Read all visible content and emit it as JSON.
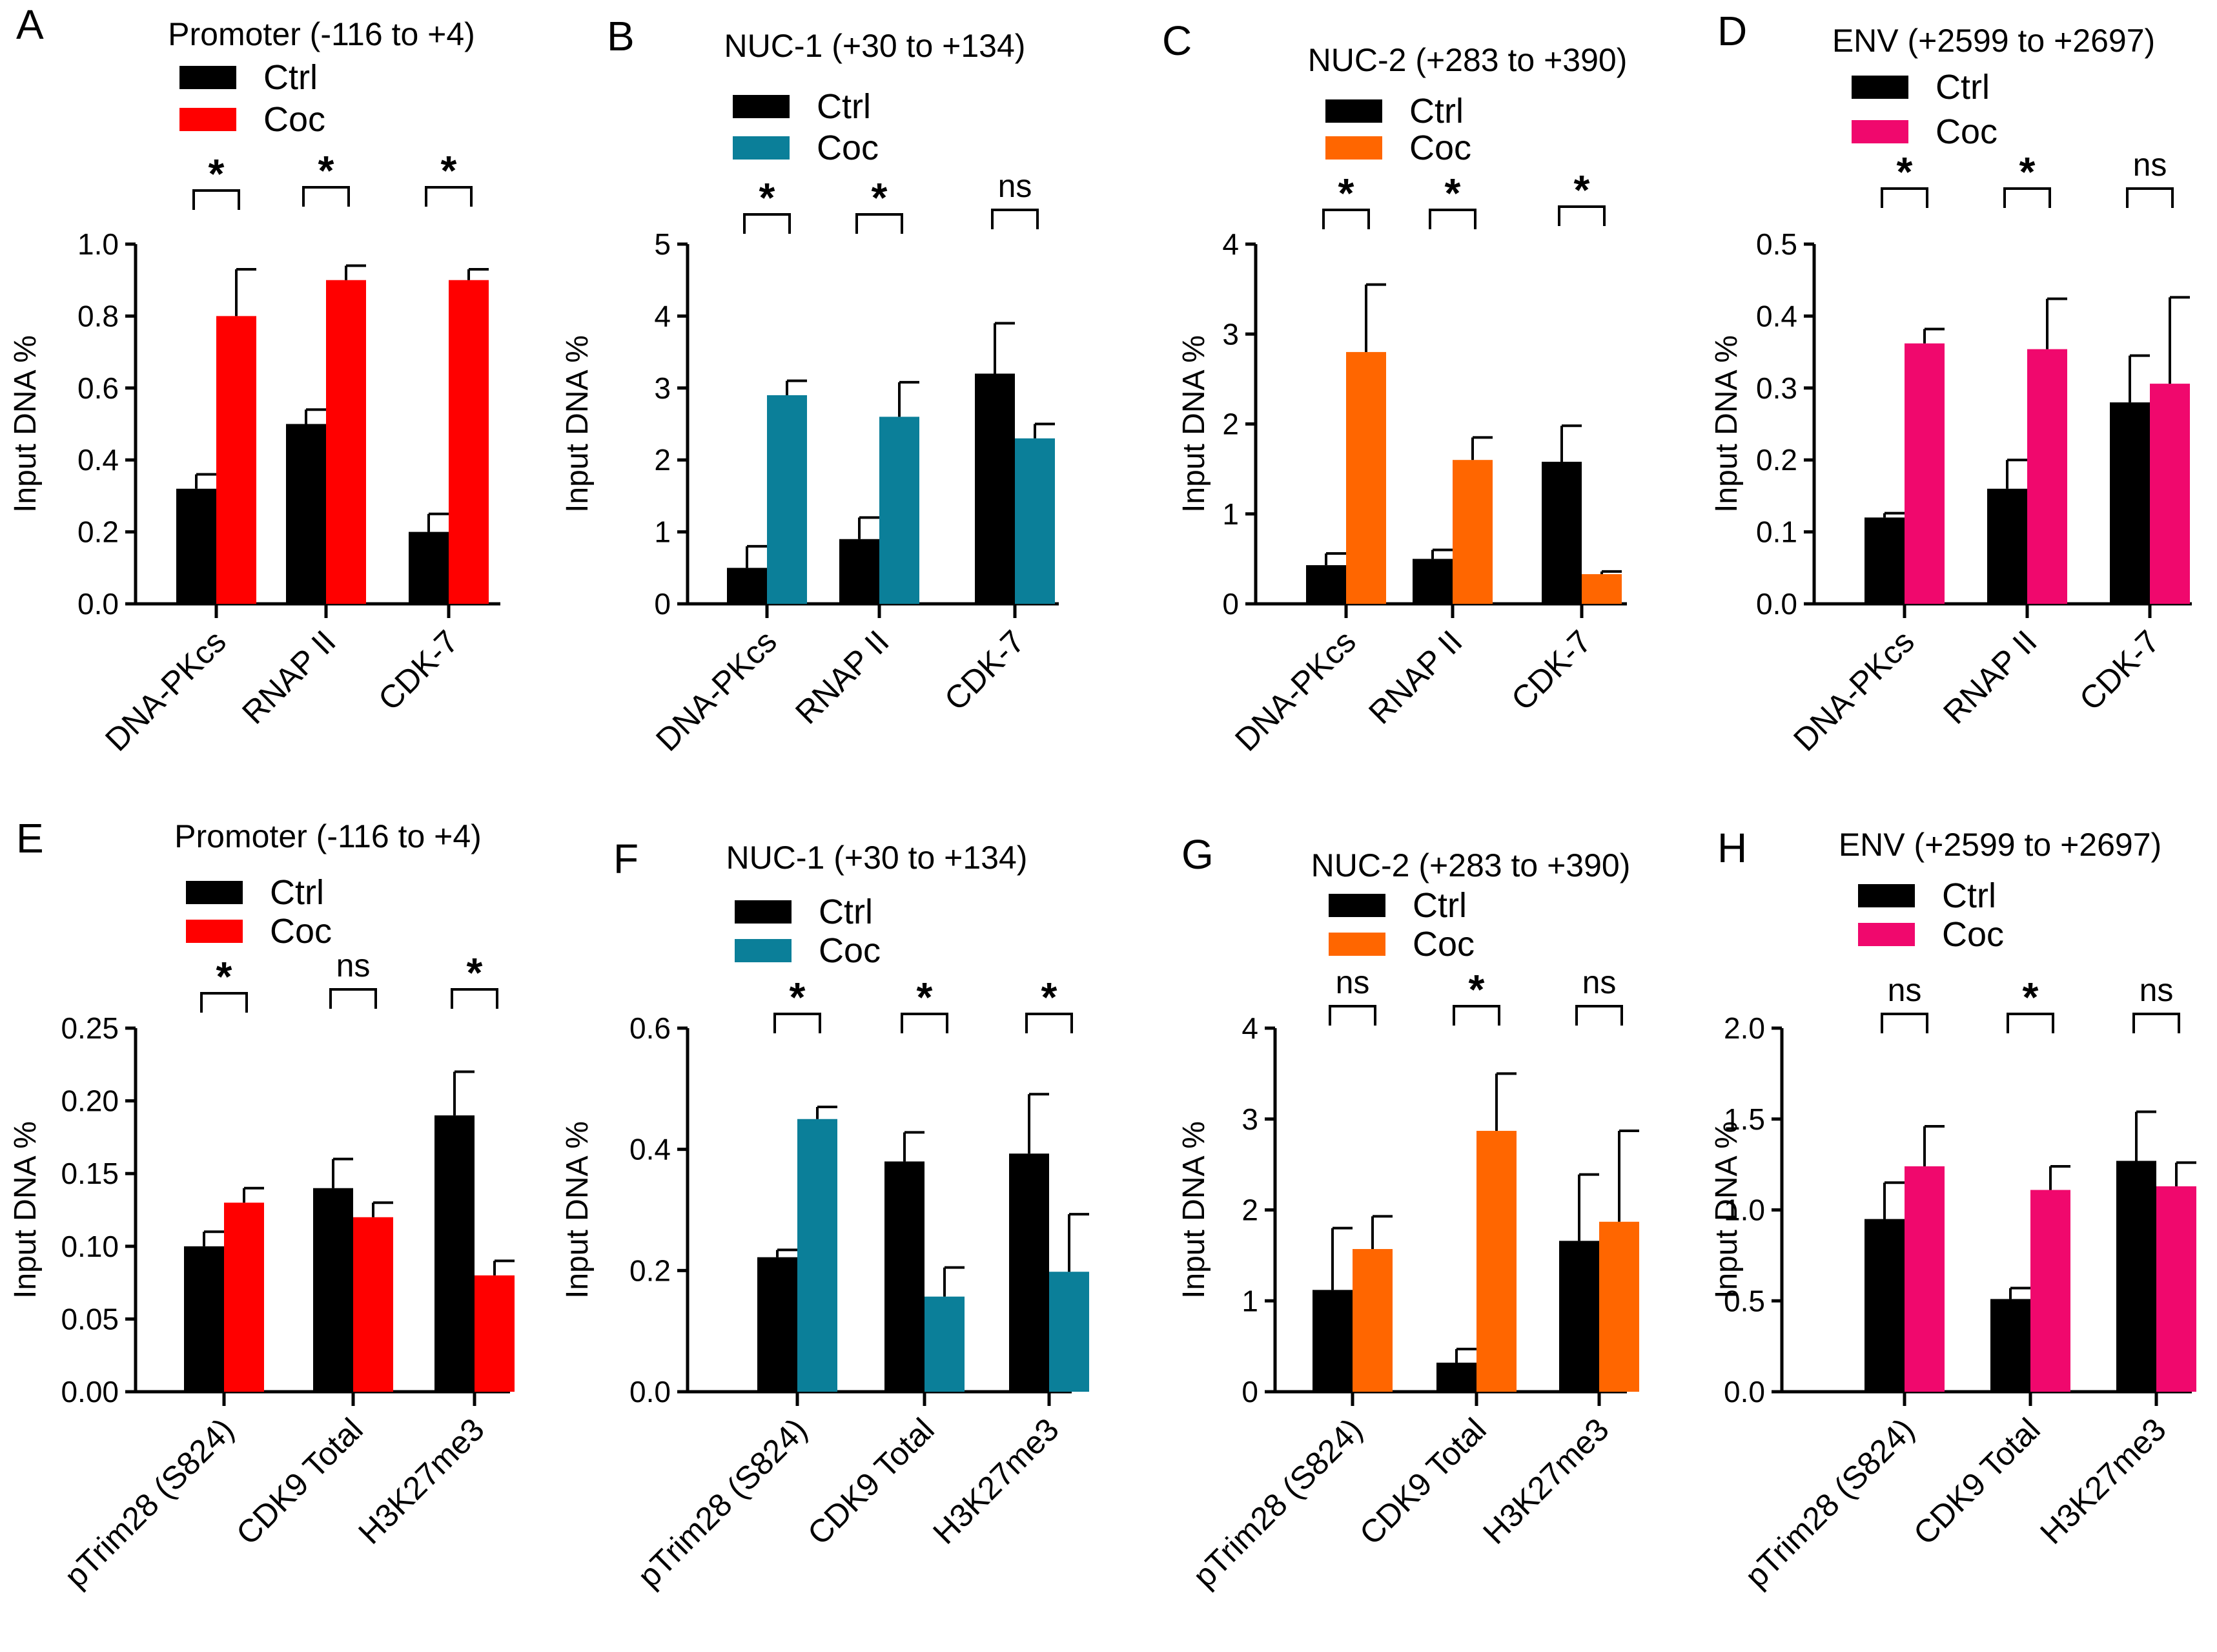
{
  "chart_data": [
    {
      "panel": "A",
      "type": "bar",
      "title": "Promoter (-116 to +4)",
      "ylabel": "Input DNA %",
      "ylim": [
        0,
        1.0
      ],
      "yticks": [
        "0.0",
        "0.2",
        "0.4",
        "0.6",
        "0.8",
        "1.0"
      ],
      "categories": [
        "DNA-PKcs",
        "RNAP II",
        "CDK-7"
      ],
      "series": [
        {
          "name": "Ctrl",
          "color": "#000000",
          "values": [
            0.32,
            0.5,
            0.2
          ],
          "errors": [
            0.04,
            0.04,
            0.05
          ]
        },
        {
          "name": "Coc",
          "color": "#ff0000",
          "values": [
            0.8,
            0.9,
            0.9
          ],
          "errors": [
            0.13,
            0.04,
            0.03
          ]
        }
      ],
      "significance": [
        "*",
        "*",
        "*"
      ]
    },
    {
      "panel": "B",
      "type": "bar",
      "title": "NUC-1 (+30 to +134)",
      "ylabel": "Input DNA %",
      "ylim": [
        0,
        5
      ],
      "yticks": [
        "0",
        "1",
        "2",
        "3",
        "4",
        "5"
      ],
      "categories": [
        "DNA-PKcs",
        "RNAP II",
        "CDK-7"
      ],
      "series": [
        {
          "name": "Ctrl",
          "color": "#000000",
          "values": [
            0.5,
            0.9,
            3.2
          ],
          "errors": [
            0.3,
            0.3,
            0.7
          ]
        },
        {
          "name": "Coc",
          "color": "#0b7f99",
          "values": [
            2.9,
            2.6,
            2.3
          ],
          "errors": [
            0.2,
            0.48,
            0.2
          ]
        }
      ],
      "significance": [
        "*",
        "*",
        "ns"
      ]
    },
    {
      "panel": "C",
      "type": "bar",
      "title": "NUC-2 (+283 to +390)",
      "ylabel": "Input DNA %",
      "ylim": [
        0,
        4
      ],
      "yticks": [
        "0",
        "1",
        "2",
        "3",
        "4"
      ],
      "categories": [
        "DNA-PKcs",
        "RNAP II",
        "CDK-7"
      ],
      "series": [
        {
          "name": "Ctrl",
          "color": "#000000",
          "values": [
            0.43,
            0.5,
            1.58
          ],
          "errors": [
            0.13,
            0.1,
            0.4
          ]
        },
        {
          "name": "Coc",
          "color": "#ff6600",
          "values": [
            2.8,
            1.6,
            0.33
          ],
          "errors": [
            0.75,
            0.25,
            0.03
          ]
        }
      ],
      "significance": [
        "*",
        "*",
        "*"
      ]
    },
    {
      "panel": "D",
      "type": "bar",
      "title": "ENV (+2599 to +2697)",
      "ylabel": "Input DNA %",
      "ylim": [
        0,
        0.5
      ],
      "yticks": [
        "0.0",
        "0.1",
        "0.2",
        "0.3",
        "0.4",
        "0.5"
      ],
      "categories": [
        "DNA-PKcs",
        "RNAP II",
        "CDK-7"
      ],
      "series": [
        {
          "name": "Ctrl",
          "color": "#000000",
          "values": [
            0.12,
            0.16,
            0.28
          ],
          "errors": [
            0.006,
            0.04,
            0.065
          ]
        },
        {
          "name": "Coc",
          "color": "#f0086d",
          "values": [
            0.362,
            0.354,
            0.306
          ],
          "errors": [
            0.02,
            0.07,
            0.12
          ]
        }
      ],
      "significance": [
        "*",
        "*",
        "ns"
      ]
    },
    {
      "panel": "E",
      "type": "bar",
      "title": "Promoter (-116 to +4)",
      "ylabel": "Input DNA %",
      "ylim": [
        0,
        0.25
      ],
      "yticks": [
        "0.00",
        "0.05",
        "0.10",
        "0.15",
        "0.20",
        "0.25"
      ],
      "categories": [
        "pTrim28 (S824)",
        "CDK9 Total",
        "H3K27me3"
      ],
      "series": [
        {
          "name": "Ctrl",
          "color": "#000000",
          "values": [
            0.1,
            0.14,
            0.19
          ],
          "errors": [
            0.01,
            0.02,
            0.03
          ]
        },
        {
          "name": "Coc",
          "color": "#ff0000",
          "values": [
            0.13,
            0.12,
            0.08
          ],
          "errors": [
            0.01,
            0.01,
            0.01
          ]
        }
      ],
      "significance": [
        "*",
        "ns",
        "*"
      ]
    },
    {
      "panel": "F",
      "type": "bar",
      "title": "NUC-1 (+30 to +134)",
      "ylabel": "Input DNA %",
      "ylim": [
        0,
        0.6
      ],
      "yticks": [
        "0.0",
        "0.2",
        "0.4",
        "0.6"
      ],
      "categories": [
        "pTrim28 (S824)",
        "CDK9 Total",
        "H3K27me3"
      ],
      "series": [
        {
          "name": "Ctrl",
          "color": "#000000",
          "values": [
            0.222,
            0.38,
            0.393
          ],
          "errors": [
            0.012,
            0.048,
            0.098
          ]
        },
        {
          "name": "Coc",
          "color": "#0b7f99",
          "values": [
            0.45,
            0.157,
            0.198
          ],
          "errors": [
            0.02,
            0.048,
            0.095
          ]
        }
      ],
      "significance": [
        "*",
        "*",
        "*"
      ]
    },
    {
      "panel": "G",
      "type": "bar",
      "title": "NUC-2 (+283 to +390)",
      "ylabel": "Input DNA %",
      "ylim": [
        0,
        4
      ],
      "yticks": [
        "0",
        "1",
        "2",
        "3",
        "4"
      ],
      "categories": [
        "pTrim28 (S824)",
        "CDK9 Total",
        "H3K27me3"
      ],
      "series": [
        {
          "name": "Ctrl",
          "color": "#000000",
          "values": [
            1.12,
            0.32,
            1.66
          ],
          "errors": [
            0.68,
            0.15,
            0.73
          ]
        },
        {
          "name": "Coc",
          "color": "#ff6600",
          "values": [
            1.57,
            2.87,
            1.87
          ],
          "errors": [
            0.36,
            0.63,
            1.0
          ]
        }
      ],
      "significance": [
        "ns",
        "*",
        "ns"
      ]
    },
    {
      "panel": "H",
      "type": "bar",
      "title": "ENV (+2599 to +2697)",
      "ylabel": "Input DNA %",
      "ylim": [
        0,
        2.0
      ],
      "yticks": [
        "0.0",
        "0.5",
        "1.0",
        "1.5",
        "2.0"
      ],
      "categories": [
        "pTrim28 (S824)",
        "CDK9 Total",
        "H3K27me3"
      ],
      "series": [
        {
          "name": "Ctrl",
          "color": "#000000",
          "values": [
            0.95,
            0.51,
            1.27
          ],
          "errors": [
            0.2,
            0.06,
            0.27
          ]
        },
        {
          "name": "Coc",
          "color": "#f0086d",
          "values": [
            1.24,
            1.11,
            1.13
          ],
          "errors": [
            0.22,
            0.13,
            0.13
          ]
        }
      ],
      "significance": [
        "ns",
        "*",
        "ns"
      ]
    }
  ]
}
